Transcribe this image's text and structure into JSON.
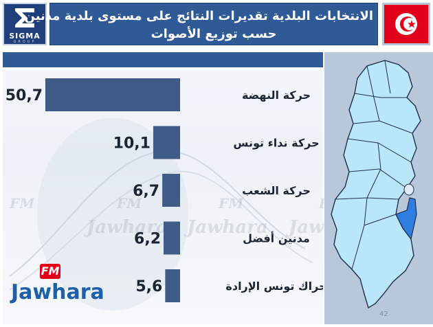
{
  "header": {
    "title_line1": "الانتخابات البلدية تقديرات النتائج على مستوى بلدية مدنين",
    "title_line2": "حسب توزيع الأصوات",
    "logo_text": "SIGMA",
    "logo_sub": "GROUP"
  },
  "watermarks": {
    "jawhara": "Jawhara",
    "fm": "FM"
  },
  "brand": {
    "fm": "FM",
    "name": "Jawhara"
  },
  "page_number": "42",
  "colors": {
    "bar": "#3f5b88",
    "header_bg": "#2f5a95",
    "flag_red": "#e2001a",
    "map_region": "#b9e6f8",
    "map_highlight": "#2f7de0"
  },
  "chart_data": {
    "type": "bar",
    "orientation": "horizontal",
    "categories": [
      "حركة النهضة",
      "حركة نداء تونس",
      "حركة الشعب",
      "مدنين أفضل",
      "حراك تونس الإرادة"
    ],
    "values": [
      50.7,
      10.1,
      6.7,
      6.2,
      5.6
    ],
    "value_labels": [
      "50,7",
      "10,1",
      "6,7",
      "6,2",
      "5,6"
    ],
    "title": "",
    "xlabel": "",
    "ylabel": "",
    "xlim": [
      0,
      50.7
    ],
    "grid": false,
    "legend": "none"
  }
}
